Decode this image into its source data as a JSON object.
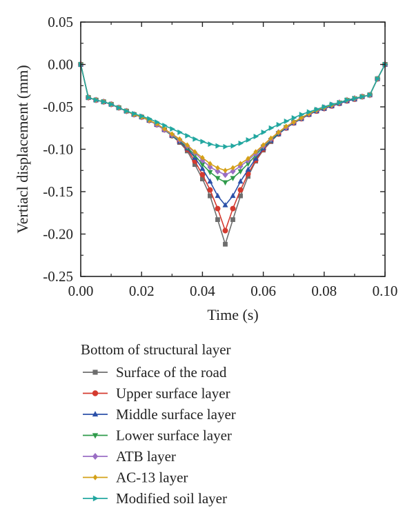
{
  "chart_data": {
    "type": "line",
    "xlabel": "Time (s)",
    "ylabel": "Vertiacl displacement (mm)",
    "xlim": [
      0.0,
      0.1
    ],
    "ylim": [
      -0.25,
      0.05
    ],
    "xticks": [
      "0.00",
      "0.02",
      "0.04",
      "0.06",
      "0.08",
      "0.10"
    ],
    "yticks": [
      "0.05",
      "0.00",
      "-0.05",
      "-0.10",
      "-0.15",
      "-0.20",
      "-0.25"
    ],
    "grid": false,
    "legend_title": "Bottom of structural layer",
    "legend_position": "bottom",
    "x": [
      0.0,
      0.0025,
      0.005,
      0.0075,
      0.01,
      0.0125,
      0.015,
      0.0175,
      0.02,
      0.0225,
      0.025,
      0.0275,
      0.03,
      0.0325,
      0.035,
      0.0375,
      0.04,
      0.0425,
      0.045,
      0.0475,
      0.05,
      0.0525,
      0.055,
      0.0575,
      0.06,
      0.0625,
      0.065,
      0.0675,
      0.07,
      0.0725,
      0.075,
      0.0775,
      0.08,
      0.0825,
      0.085,
      0.0875,
      0.09,
      0.0925,
      0.095,
      0.0975,
      0.1
    ],
    "series": [
      {
        "name": "Surface of the road",
        "color": "#6d6d6d",
        "marker": "square",
        "values": [
          0.0,
          -0.039,
          -0.042,
          -0.044,
          -0.047,
          -0.051,
          -0.055,
          -0.059,
          -0.062,
          -0.066,
          -0.071,
          -0.077,
          -0.084,
          -0.092,
          -0.102,
          -0.118,
          -0.135,
          -0.155,
          -0.183,
          -0.212,
          -0.183,
          -0.155,
          -0.132,
          -0.114,
          -0.101,
          -0.091,
          -0.082,
          -0.075,
          -0.069,
          -0.064,
          -0.059,
          -0.055,
          -0.052,
          -0.049,
          -0.046,
          -0.043,
          -0.041,
          -0.038,
          -0.036,
          -0.017,
          0.0
        ]
      },
      {
        "name": "Upper surface layer",
        "color": "#d43a2f",
        "marker": "circle",
        "values": [
          0.0,
          -0.039,
          -0.042,
          -0.044,
          -0.047,
          -0.051,
          -0.055,
          -0.059,
          -0.062,
          -0.066,
          -0.071,
          -0.077,
          -0.084,
          -0.091,
          -0.1,
          -0.114,
          -0.13,
          -0.148,
          -0.17,
          -0.196,
          -0.17,
          -0.148,
          -0.129,
          -0.113,
          -0.1,
          -0.09,
          -0.082,
          -0.075,
          -0.069,
          -0.064,
          -0.059,
          -0.055,
          -0.052,
          -0.049,
          -0.046,
          -0.043,
          -0.041,
          -0.038,
          -0.036,
          -0.017,
          0.0
        ]
      },
      {
        "name": "Middle surface layer",
        "color": "#2b50a8",
        "marker": "triangle-up",
        "values": [
          0.0,
          -0.039,
          -0.042,
          -0.044,
          -0.047,
          -0.051,
          -0.055,
          -0.059,
          -0.062,
          -0.066,
          -0.071,
          -0.077,
          -0.084,
          -0.091,
          -0.099,
          -0.11,
          -0.123,
          -0.138,
          -0.155,
          -0.166,
          -0.155,
          -0.138,
          -0.124,
          -0.111,
          -0.099,
          -0.09,
          -0.082,
          -0.075,
          -0.069,
          -0.064,
          -0.059,
          -0.055,
          -0.052,
          -0.049,
          -0.046,
          -0.043,
          -0.041,
          -0.038,
          -0.036,
          -0.017,
          0.0
        ]
      },
      {
        "name": "Lower surface layer",
        "color": "#2e9a4a",
        "marker": "triangle-down",
        "values": [
          0.0,
          -0.039,
          -0.042,
          -0.044,
          -0.047,
          -0.051,
          -0.055,
          -0.059,
          -0.062,
          -0.066,
          -0.071,
          -0.077,
          -0.084,
          -0.09,
          -0.098,
          -0.107,
          -0.118,
          -0.127,
          -0.134,
          -0.139,
          -0.134,
          -0.126,
          -0.117,
          -0.107,
          -0.097,
          -0.089,
          -0.081,
          -0.074,
          -0.068,
          -0.063,
          -0.058,
          -0.054,
          -0.051,
          -0.048,
          -0.045,
          -0.042,
          -0.04,
          -0.038,
          -0.036,
          -0.017,
          0.0
        ]
      },
      {
        "name": "ATB layer",
        "color": "#9a6ec4",
        "marker": "diamond",
        "values": [
          0.0,
          -0.039,
          -0.042,
          -0.044,
          -0.047,
          -0.051,
          -0.055,
          -0.059,
          -0.062,
          -0.066,
          -0.071,
          -0.077,
          -0.083,
          -0.089,
          -0.096,
          -0.104,
          -0.113,
          -0.121,
          -0.126,
          -0.13,
          -0.126,
          -0.12,
          -0.113,
          -0.105,
          -0.096,
          -0.088,
          -0.08,
          -0.074,
          -0.068,
          -0.063,
          -0.058,
          -0.054,
          -0.051,
          -0.048,
          -0.045,
          -0.042,
          -0.04,
          -0.038,
          -0.036,
          -0.017,
          0.0
        ]
      },
      {
        "name": "AC-13 layer",
        "color": "#d4a017",
        "marker": "diamond-small",
        "values": [
          0.0,
          -0.039,
          -0.042,
          -0.044,
          -0.047,
          -0.051,
          -0.055,
          -0.059,
          -0.062,
          -0.066,
          -0.07,
          -0.076,
          -0.082,
          -0.088,
          -0.095,
          -0.103,
          -0.11,
          -0.117,
          -0.122,
          -0.125,
          -0.122,
          -0.117,
          -0.111,
          -0.103,
          -0.095,
          -0.087,
          -0.08,
          -0.073,
          -0.068,
          -0.063,
          -0.058,
          -0.054,
          -0.051,
          -0.048,
          -0.045,
          -0.042,
          -0.04,
          -0.038,
          -0.036,
          -0.017,
          0.0
        ]
      },
      {
        "name": "Modified soil layer",
        "color": "#22a7a0",
        "marker": "triangle-right",
        "values": [
          0.0,
          -0.039,
          -0.042,
          -0.044,
          -0.047,
          -0.051,
          -0.055,
          -0.058,
          -0.061,
          -0.064,
          -0.068,
          -0.072,
          -0.076,
          -0.08,
          -0.084,
          -0.088,
          -0.091,
          -0.094,
          -0.096,
          -0.097,
          -0.096,
          -0.093,
          -0.089,
          -0.085,
          -0.08,
          -0.075,
          -0.071,
          -0.067,
          -0.063,
          -0.059,
          -0.056,
          -0.053,
          -0.05,
          -0.047,
          -0.045,
          -0.042,
          -0.04,
          -0.038,
          -0.036,
          -0.017,
          0.0
        ]
      }
    ]
  }
}
